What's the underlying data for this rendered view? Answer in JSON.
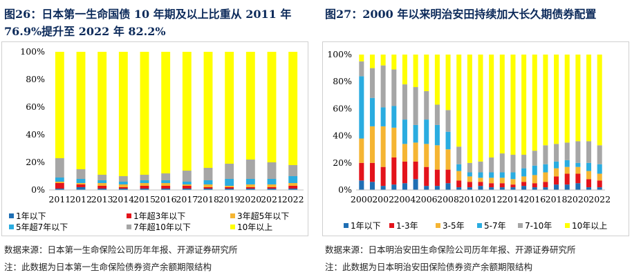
{
  "left_panel": {
    "title": "图26：日本第一生命国债 10 年期及以上比重从 2011 年 76.9%提升至 2022 年 82.2%",
    "source": "数据来源：日本第一生命保险公司历年年报、开源证券研究所",
    "note": "注：此数据为日本第一生命保险债券资产余额期限结构"
  },
  "right_panel": {
    "title": "图27：2000 年以来明治安田持续加大长久期债券配置",
    "source": "数据来源：日本明治安田生命保险公司历年年报、开源证券研究所",
    "note": "注：此数据为日本明治安田保险债券资产余额期限结构"
  },
  "chart_data": [
    {
      "type": "bar",
      "stacked": true,
      "title": "图26：日本第一生命国债 10 年期及以上比重从 2011 年 76.9%提升至 2022 年 82.2%",
      "categories": [
        "2011",
        "2012",
        "2013",
        "2014",
        "2015",
        "2016",
        "2017",
        "2018",
        "2019",
        "2020",
        "2021",
        "2022"
      ],
      "ylim": [
        0,
        100
      ],
      "yticks": [
        "0%",
        "20%",
        "40%",
        "60%",
        "80%",
        "100%"
      ],
      "legend_position": "bottom",
      "series": [
        {
          "name": "1年以下",
          "color": "#1f6fb4",
          "values": [
            1,
            2,
            1,
            1,
            1,
            1,
            1,
            1,
            1,
            1,
            1,
            1
          ]
        },
        {
          "name": "1年超3年以下",
          "color": "#e3131b",
          "values": [
            4,
            2,
            2,
            1,
            2,
            2,
            2,
            1,
            1,
            1,
            1,
            2
          ]
        },
        {
          "name": "3年超5年以下",
          "color": "#f5b533",
          "values": [
            1,
            1,
            2,
            2,
            2,
            2,
            1,
            2,
            1,
            2,
            2,
            2
          ]
        },
        {
          "name": "5年超7年以下",
          "color": "#2aace0",
          "values": [
            3,
            3,
            2,
            2,
            2,
            2,
            2,
            3,
            5,
            4,
            4,
            5
          ]
        },
        {
          "name": "7年超10年以下",
          "color": "#a6a6a6",
          "values": [
            14,
            7,
            4,
            4,
            4,
            5,
            8,
            9,
            11,
            14,
            12,
            8
          ]
        },
        {
          "name": "10年以上",
          "color": "#ffff00",
          "values": [
            77,
            85,
            89,
            90,
            89,
            88,
            86,
            84,
            81,
            78,
            80,
            82
          ]
        }
      ]
    },
    {
      "type": "bar",
      "stacked": true,
      "title": "图27：2000 年以来明治安田持续加大长久期债券配置",
      "categories": [
        "2000",
        "2001",
        "2002",
        "2003",
        "2004",
        "2005",
        "2006",
        "2007",
        "2008",
        "2009",
        "2010",
        "2011",
        "2012",
        "2013",
        "2014",
        "2015",
        "2016",
        "2017",
        "2018",
        "2019",
        "2020",
        "2021",
        "2022"
      ],
      "tick_labels": [
        "2000",
        "2002",
        "2004",
        "2006",
        "2008",
        "2010",
        "2012",
        "2014",
        "2016",
        "2018",
        "2020",
        "2022"
      ],
      "ylim": [
        0,
        100
      ],
      "yticks": [
        "0%",
        "20%",
        "40%",
        "60%",
        "80%",
        "100%"
      ],
      "legend_position": "bottom",
      "series": [
        {
          "name": "1年以下",
          "color": "#1f6fb4",
          "values": [
            7,
            6,
            3,
            4,
            5,
            8,
            3,
            3,
            5,
            2,
            2,
            3,
            2,
            2,
            2,
            3,
            2,
            2,
            4,
            4,
            5,
            2,
            2
          ]
        },
        {
          "name": "1-3年",
          "color": "#e3131b",
          "values": [
            13,
            14,
            14,
            20,
            16,
            13,
            14,
            12,
            10,
            5,
            4,
            3,
            3,
            3,
            2,
            3,
            3,
            4,
            6,
            8,
            7,
            6,
            5
          ]
        },
        {
          "name": "3-5年",
          "color": "#f5b533",
          "values": [
            18,
            27,
            30,
            22,
            13,
            14,
            17,
            18,
            15,
            7,
            4,
            3,
            4,
            4,
            4,
            4,
            6,
            7,
            6,
            5,
            5,
            6,
            5
          ]
        },
        {
          "name": "5-7年",
          "color": "#2aace0",
          "values": [
            46,
            21,
            14,
            16,
            18,
            13,
            18,
            15,
            13,
            5,
            3,
            4,
            4,
            4,
            5,
            6,
            7,
            6,
            5,
            5,
            3,
            6,
            7
          ]
        },
        {
          "name": "7-10年",
          "color": "#a6a6a6",
          "values": [
            11,
            22,
            31,
            27,
            26,
            28,
            21,
            15,
            16,
            13,
            7,
            8,
            11,
            14,
            13,
            10,
            11,
            14,
            13,
            13,
            16,
            16,
            14
          ]
        },
        {
          "name": "10年以上",
          "color": "#ffff00",
          "values": [
            5,
            10,
            8,
            11,
            22,
            24,
            27,
            37,
            41,
            68,
            80,
            79,
            76,
            73,
            74,
            74,
            71,
            67,
            66,
            65,
            64,
            64,
            67
          ]
        }
      ]
    }
  ]
}
